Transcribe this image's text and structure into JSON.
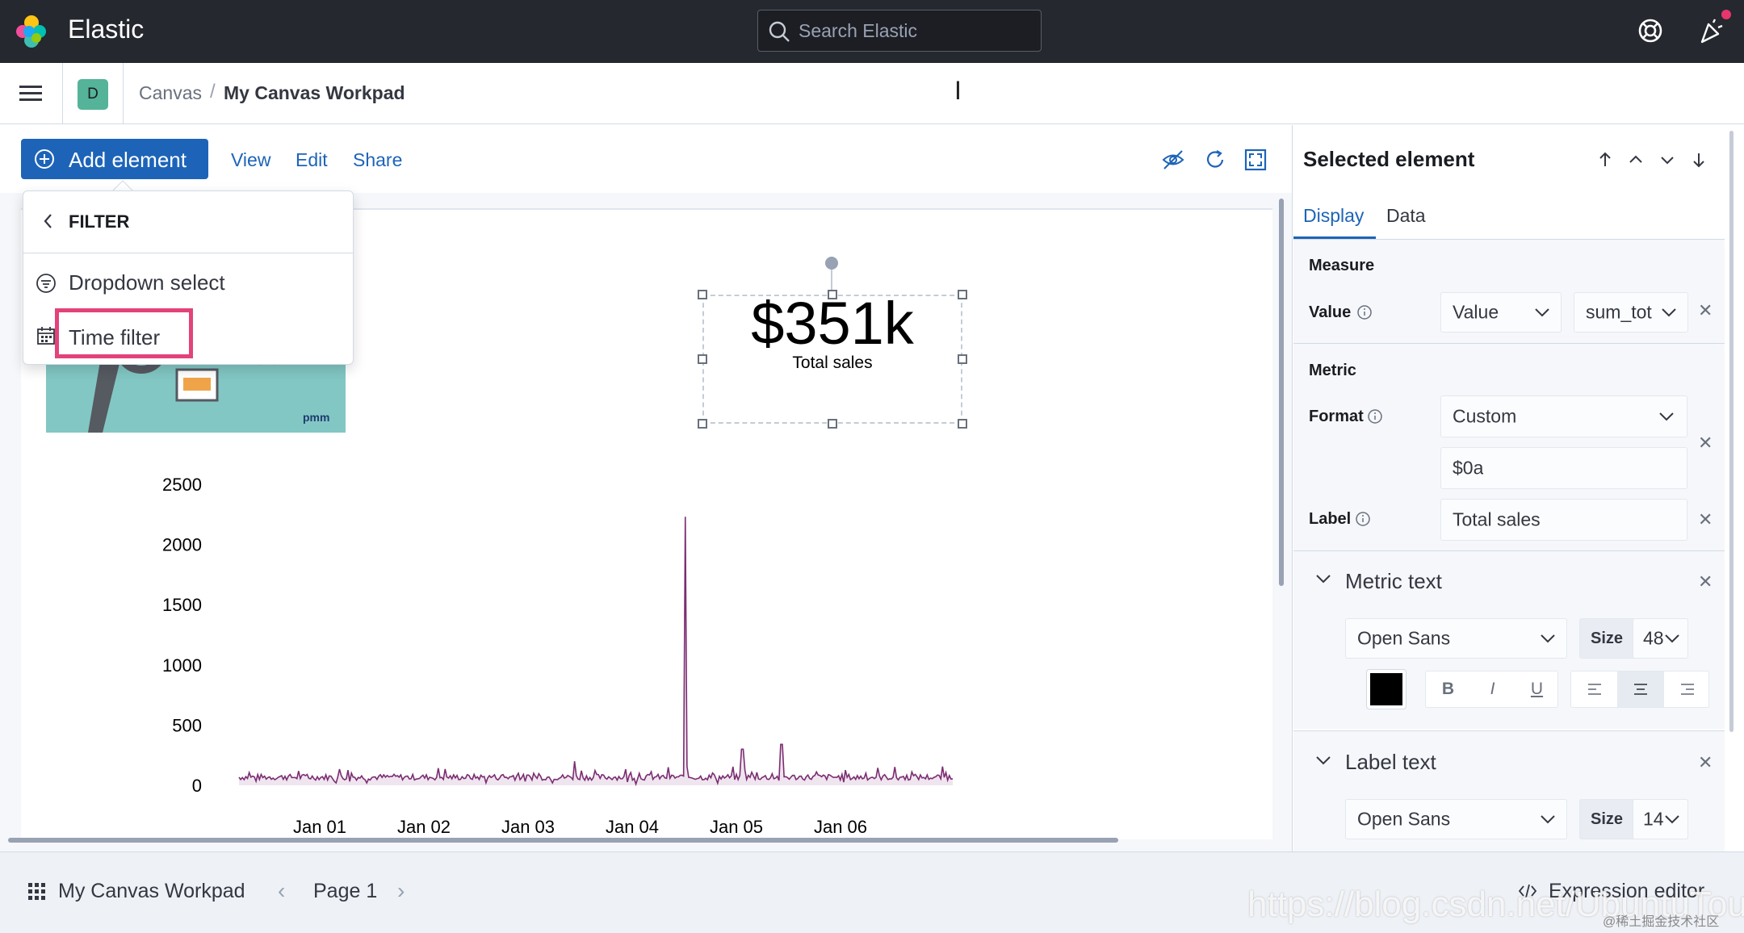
{
  "header": {
    "brand": "Elastic",
    "search_placeholder": "Search Elastic"
  },
  "breadcrumbs": {
    "space_initial": "D",
    "items": [
      "Canvas",
      "My Canvas Workpad"
    ],
    "separator": "/"
  },
  "toolbar": {
    "add_element_label": "Add element",
    "links": [
      "View",
      "Edit",
      "Share"
    ]
  },
  "popover": {
    "title": "FILTER",
    "items": [
      "Dropdown select",
      "Time filter"
    ],
    "highlight_color": "#e3427a"
  },
  "canvas": {
    "metric": {
      "value": "$351k",
      "label": "Total sales"
    },
    "image_tile_brand": "pmm"
  },
  "chart_data": {
    "type": "line",
    "x_ticks": [
      "Jan 01",
      "Jan 02",
      "Jan 03",
      "Jan 04",
      "Jan 05",
      "Jan 06"
    ],
    "y_ticks": [
      0,
      500,
      1000,
      1500,
      2000,
      2500
    ],
    "ylim": [
      0,
      2500
    ],
    "series": [
      {
        "color": "#7b2d72",
        "baseline": 60,
        "noise": 50,
        "peaks": [
          {
            "x": 0.625,
            "y": 2230
          },
          {
            "x": 0.705,
            "y": 300
          },
          {
            "x": 0.76,
            "y": 340
          },
          {
            "x": 0.47,
            "y": 200
          }
        ]
      }
    ],
    "grid": false,
    "legend": "none"
  },
  "sidebar": {
    "title": "Selected element",
    "tabs": [
      "Display",
      "Data"
    ],
    "measure": {
      "section": "Measure",
      "label": "Value",
      "select1": "Value",
      "select2": "sum_tot"
    },
    "metric": {
      "section": "Metric",
      "format_label": "Format",
      "format_value": "Custom",
      "format_pattern": "$0a",
      "label_label": "Label",
      "label_value": "Total sales"
    },
    "metric_text": {
      "title": "Metric text",
      "font": "Open Sans",
      "size_label": "Size",
      "size": "48",
      "color": "#000000",
      "styles": [
        "B",
        "I",
        "U"
      ]
    },
    "label_text": {
      "title": "Label text",
      "font": "Open Sans",
      "size_label": "Size",
      "size": "14"
    }
  },
  "footer": {
    "workpad_name": "My Canvas Workpad",
    "page": "Page 1",
    "expression_editor": "Expression editor"
  },
  "watermark": {
    "url": "https://blog.csdn.net/UbuntuTouch",
    "secondary": "@稀土掘金技术社区"
  }
}
